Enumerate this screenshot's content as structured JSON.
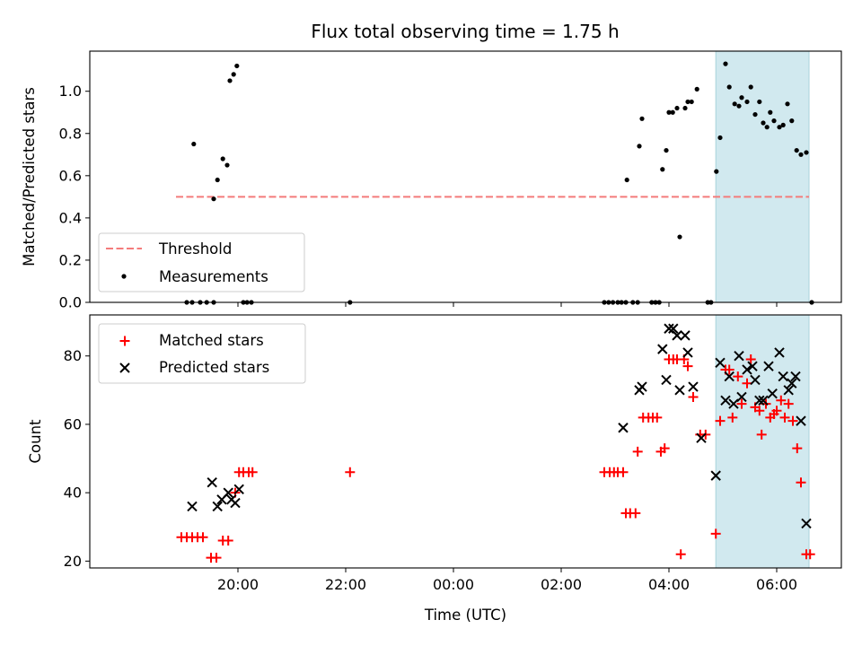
{
  "title": "Flux total observing time = 1.75 h",
  "chart_data": [
    {
      "type": "scatter",
      "ylabel": "Matched/Predicted stars",
      "xlabel": "",
      "xlim_hours": [
        17.25,
        31.2
      ],
      "ylim": [
        0,
        1.19
      ],
      "yticks": [
        "0.0",
        "0.2",
        "0.4",
        "0.6",
        "0.8",
        "1.0"
      ],
      "xticks_shown": "tick marks only, no labels",
      "highlight_span_hours": [
        28.87,
        30.6
      ],
      "highlight_color": "#d1e9ef",
      "threshold": {
        "name": "Threshold",
        "value": 0.5,
        "x_range_hours": [
          18.85,
          30.6
        ],
        "color": "#f47b7b",
        "style": "dashed"
      },
      "series": [
        {
          "name": "Measurements",
          "marker": "dot",
          "color": "#000000",
          "points": [
            [
              19.05,
              0
            ],
            [
              19.15,
              0
            ],
            [
              19.3,
              0
            ],
            [
              19.42,
              0
            ],
            [
              19.55,
              0
            ],
            [
              20.1,
              0
            ],
            [
              20.17,
              0
            ],
            [
              20.25,
              0
            ],
            [
              22.08,
              0
            ],
            [
              19.18,
              0.75
            ],
            [
              19.55,
              0.49
            ],
            [
              19.62,
              0.58
            ],
            [
              19.72,
              0.68
            ],
            [
              19.8,
              0.65
            ],
            [
              19.85,
              1.05
            ],
            [
              19.92,
              1.08
            ],
            [
              19.98,
              1.12
            ],
            [
              26.8,
              0
            ],
            [
              26.88,
              0
            ],
            [
              26.96,
              0
            ],
            [
              27.05,
              0
            ],
            [
              27.12,
              0
            ],
            [
              27.2,
              0
            ],
            [
              27.33,
              0
            ],
            [
              27.42,
              0
            ],
            [
              27.68,
              0
            ],
            [
              27.75,
              0
            ],
            [
              27.82,
              0
            ],
            [
              28.72,
              0
            ],
            [
              28.78,
              0
            ],
            [
              30.65,
              0
            ],
            [
              27.22,
              0.58
            ],
            [
              27.45,
              0.74
            ],
            [
              27.5,
              0.87
            ],
            [
              27.88,
              0.63
            ],
            [
              27.95,
              0.72
            ],
            [
              28.0,
              0.9
            ],
            [
              28.07,
              0.9
            ],
            [
              28.15,
              0.92
            ],
            [
              28.2,
              0.31
            ],
            [
              28.3,
              0.92
            ],
            [
              28.35,
              0.95
            ],
            [
              28.42,
              0.95
            ],
            [
              28.52,
              1.01
            ],
            [
              28.88,
              0.62
            ],
            [
              28.95,
              0.78
            ],
            [
              29.05,
              1.13
            ],
            [
              29.12,
              1.02
            ],
            [
              29.22,
              0.94
            ],
            [
              29.3,
              0.93
            ],
            [
              29.35,
              0.97
            ],
            [
              29.45,
              0.95
            ],
            [
              29.52,
              1.02
            ],
            [
              29.6,
              0.89
            ],
            [
              29.68,
              0.95
            ],
            [
              29.75,
              0.85
            ],
            [
              29.82,
              0.83
            ],
            [
              29.88,
              0.9
            ],
            [
              29.95,
              0.86
            ],
            [
              30.05,
              0.83
            ],
            [
              30.12,
              0.84
            ],
            [
              30.2,
              0.94
            ],
            [
              30.28,
              0.86
            ],
            [
              30.37,
              0.72
            ],
            [
              30.45,
              0.7
            ],
            [
              30.55,
              0.71
            ]
          ]
        }
      ],
      "legend": {
        "placement": "lower-left",
        "entries": [
          "Threshold",
          "Measurements"
        ]
      }
    },
    {
      "type": "scatter",
      "ylabel": "Count",
      "xlabel": "Time (UTC)",
      "xlim_hours": [
        17.25,
        31.2
      ],
      "ylim": [
        18,
        92
      ],
      "yticks": [
        "20",
        "40",
        "60",
        "80"
      ],
      "xtick_labels": [
        "20:00",
        "22:00",
        "00:00",
        "02:00",
        "04:00",
        "06:00"
      ],
      "xtick_hours": [
        20,
        22,
        24,
        26,
        28,
        30
      ],
      "highlight_span_hours": [
        28.87,
        30.6
      ],
      "series": [
        {
          "name": "Matched stars",
          "marker": "plus",
          "color": "#ff0000",
          "points": [
            [
              18.95,
              27
            ],
            [
              19.05,
              27
            ],
            [
              19.15,
              27
            ],
            [
              19.25,
              27
            ],
            [
              19.35,
              27
            ],
            [
              19.5,
              21
            ],
            [
              19.6,
              21
            ],
            [
              19.72,
              26
            ],
            [
              19.82,
              26
            ],
            [
              19.95,
              40
            ],
            [
              20.02,
              46
            ],
            [
              20.1,
              46
            ],
            [
              20.2,
              46
            ],
            [
              20.27,
              46
            ],
            [
              22.08,
              46
            ],
            [
              26.8,
              46
            ],
            [
              26.9,
              46
            ],
            [
              26.98,
              46
            ],
            [
              27.05,
              46
            ],
            [
              27.15,
              46
            ],
            [
              27.2,
              34
            ],
            [
              27.28,
              34
            ],
            [
              27.38,
              34
            ],
            [
              27.42,
              52
            ],
            [
              27.52,
              62
            ],
            [
              27.62,
              62
            ],
            [
              27.7,
              62
            ],
            [
              27.78,
              62
            ],
            [
              27.85,
              52
            ],
            [
              27.92,
              53
            ],
            [
              28.0,
              79
            ],
            [
              28.08,
              79
            ],
            [
              28.15,
              79
            ],
            [
              28.22,
              22
            ],
            [
              28.28,
              79
            ],
            [
              28.35,
              77
            ],
            [
              28.45,
              68
            ],
            [
              28.58,
              57
            ],
            [
              28.68,
              57
            ],
            [
              28.87,
              28
            ],
            [
              28.95,
              61
            ],
            [
              29.05,
              76
            ],
            [
              29.12,
              76
            ],
            [
              29.18,
              62
            ],
            [
              29.28,
              74
            ],
            [
              29.35,
              66
            ],
            [
              29.45,
              72
            ],
            [
              29.52,
              79
            ],
            [
              29.6,
              65
            ],
            [
              29.68,
              64
            ],
            [
              29.72,
              57
            ],
            [
              29.8,
              66
            ],
            [
              29.88,
              62
            ],
            [
              29.95,
              63
            ],
            [
              30.0,
              64
            ],
            [
              30.08,
              67
            ],
            [
              30.15,
              62
            ],
            [
              30.22,
              66
            ],
            [
              30.3,
              61
            ],
            [
              30.38,
              53
            ],
            [
              30.45,
              43
            ],
            [
              30.55,
              22
            ],
            [
              30.62,
              22
            ]
          ]
        },
        {
          "name": "Predicted stars",
          "marker": "x",
          "color": "#000000",
          "points": [
            [
              19.15,
              36
            ],
            [
              19.52,
              43
            ],
            [
              19.62,
              36
            ],
            [
              19.7,
              38
            ],
            [
              19.82,
              40
            ],
            [
              19.88,
              38
            ],
            [
              19.95,
              37
            ],
            [
              20.02,
              41
            ],
            [
              27.15,
              59
            ],
            [
              27.45,
              70
            ],
            [
              27.5,
              71
            ],
            [
              27.88,
              82
            ],
            [
              27.95,
              73
            ],
            [
              28.0,
              88
            ],
            [
              28.08,
              88
            ],
            [
              28.15,
              86
            ],
            [
              28.2,
              70
            ],
            [
              28.3,
              86
            ],
            [
              28.35,
              81
            ],
            [
              28.45,
              71
            ],
            [
              28.6,
              56
            ],
            [
              28.87,
              45
            ],
            [
              28.95,
              78
            ],
            [
              29.05,
              67
            ],
            [
              29.12,
              74
            ],
            [
              29.2,
              66
            ],
            [
              29.3,
              80
            ],
            [
              29.35,
              68
            ],
            [
              29.45,
              76
            ],
            [
              29.55,
              77
            ],
            [
              29.6,
              73
            ],
            [
              29.68,
              67
            ],
            [
              29.75,
              67
            ],
            [
              29.85,
              77
            ],
            [
              29.92,
              69
            ],
            [
              30.05,
              81
            ],
            [
              30.12,
              74
            ],
            [
              30.22,
              70
            ],
            [
              30.28,
              72
            ],
            [
              30.35,
              74
            ],
            [
              30.45,
              61
            ],
            [
              30.55,
              31
            ]
          ]
        }
      ],
      "legend": {
        "placement": "upper-left",
        "entries": [
          "Matched stars",
          "Predicted stars"
        ]
      }
    }
  ]
}
